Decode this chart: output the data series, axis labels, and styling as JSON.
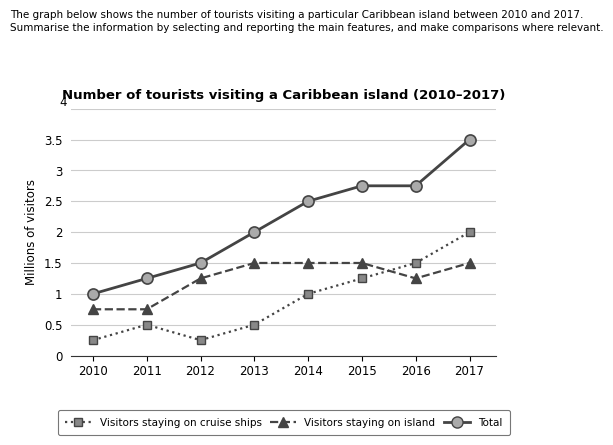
{
  "years": [
    2010,
    2011,
    2012,
    2013,
    2014,
    2015,
    2016,
    2017
  ],
  "cruise_ships": [
    0.25,
    0.5,
    0.25,
    0.5,
    1.0,
    1.25,
    1.5,
    2.0
  ],
  "island": [
    0.75,
    0.75,
    1.25,
    1.5,
    1.5,
    1.5,
    1.25,
    1.5
  ],
  "total": [
    1.0,
    1.25,
    1.5,
    2.0,
    2.5,
    2.75,
    2.75,
    3.5
  ],
  "title": "Number of tourists visiting a Caribbean island (2010–2017)",
  "ylabel": "Millions of visitors",
  "ylim": [
    0,
    4
  ],
  "yticks": [
    0,
    0.5,
    1.0,
    1.5,
    2.0,
    2.5,
    3.0,
    3.5
  ],
  "ytick_labels": [
    "0",
    "0.5",
    "1",
    "1.5",
    "2",
    "2.5",
    "3",
    "3.5"
  ],
  "suptitle_line1": "The graph below shows the number of tourists visiting a particular Caribbean island between 2010 and 2017.",
  "suptitle_line2": "Summarise the information by selecting and reporting the main features, and make comparisons where relevant.",
  "legend_cruise": "Visitors staying on cruise ships",
  "legend_island": "Visitors staying on island",
  "legend_total": "Total",
  "line_color": "#444444",
  "marker_fill_circle": "#aaaaaa",
  "marker_fill_square": "#888888",
  "background_color": "#ffffff",
  "grid_color": "#cccccc"
}
